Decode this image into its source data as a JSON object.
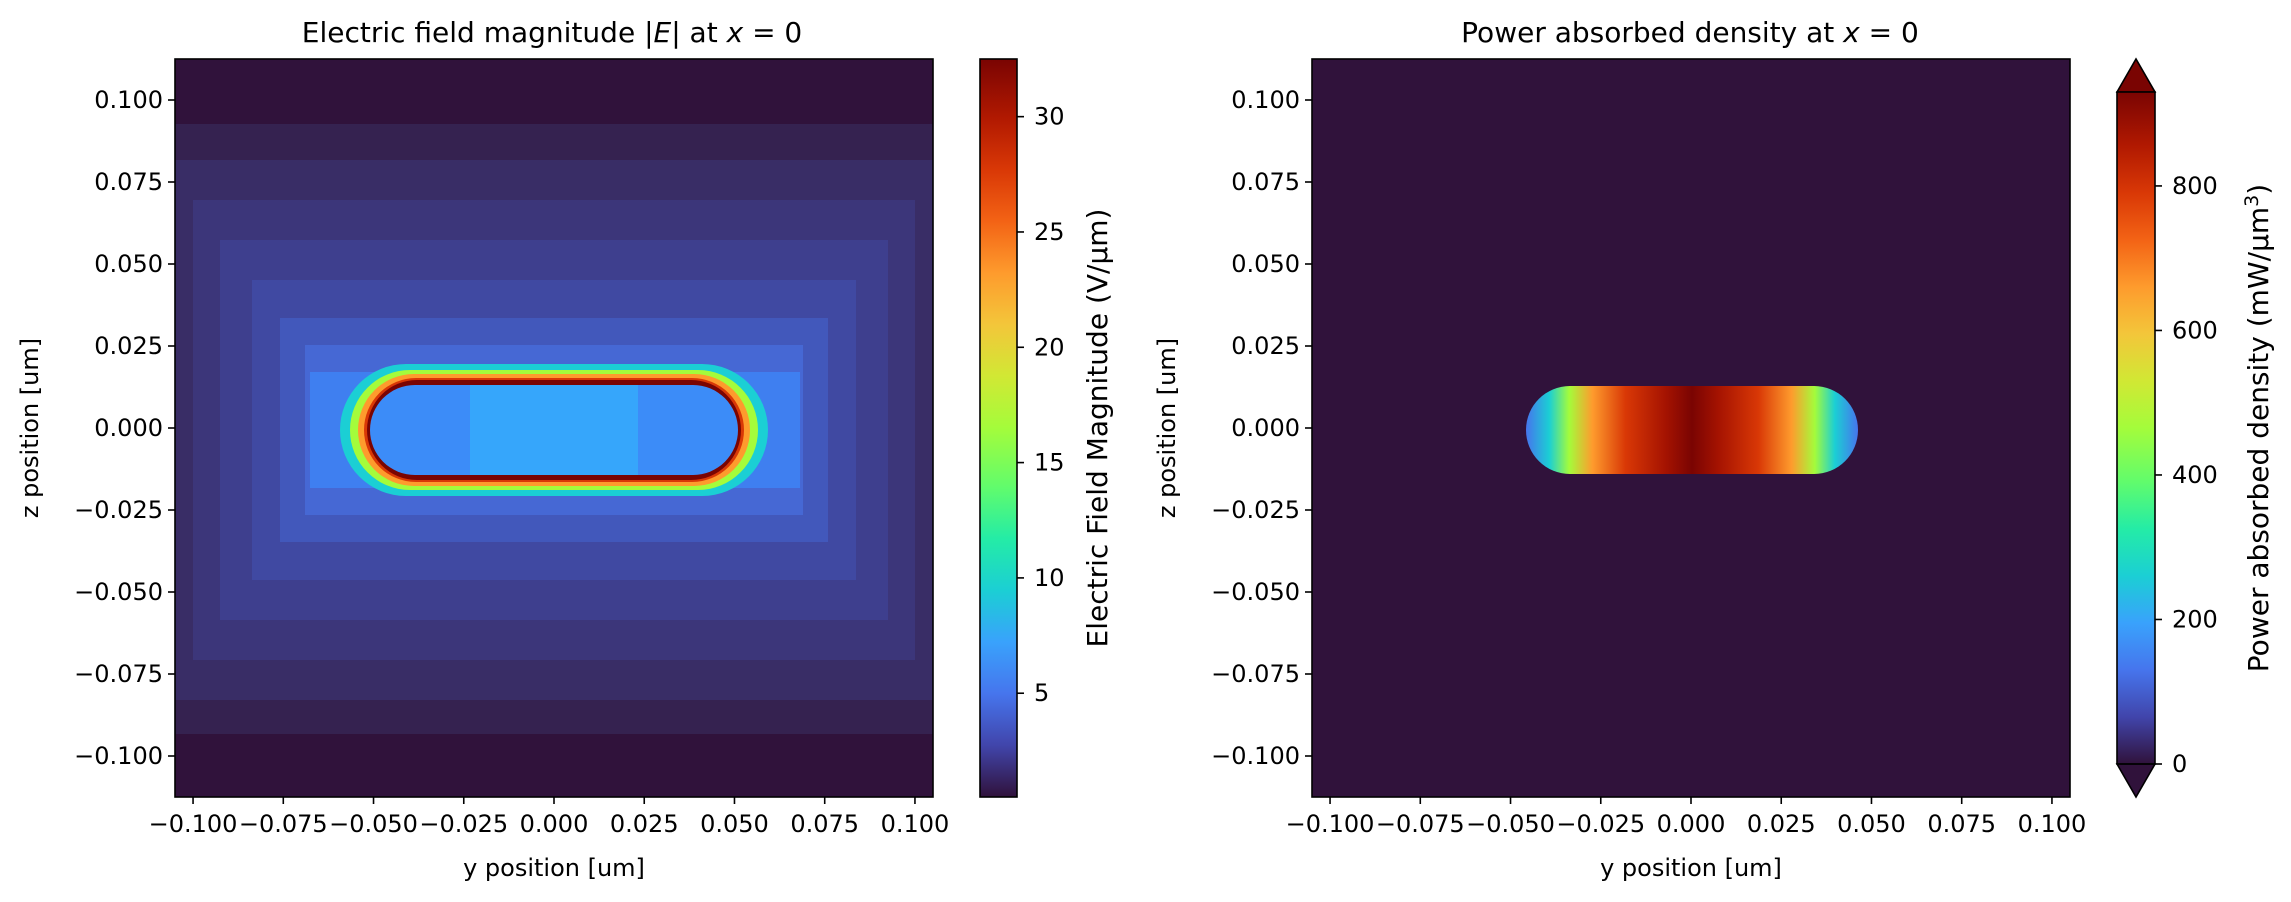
{
  "chart_data": [
    {
      "type": "heatmap",
      "title": "Electric field magnitude |E| at x = 0",
      "title_parts": {
        "prefix": "Electric field magnitude |",
        "E": "E",
        "mid": "| at ",
        "x": "x",
        "suffix": " = 0"
      },
      "xlabel": "y position [um]",
      "ylabel": "z position [um]",
      "xlim": [
        -0.105,
        0.105
      ],
      "ylim": [
        -0.1125,
        0.1125
      ],
      "xticks": [
        -0.1,
        -0.075,
        -0.05,
        -0.025,
        0.0,
        0.025,
        0.05,
        0.075,
        0.1
      ],
      "xtick_labels": [
        "−0.100",
        "−0.075",
        "−0.050",
        "−0.025",
        "0.000",
        "0.025",
        "0.050",
        "0.075",
        "0.100"
      ],
      "yticks": [
        0.1,
        0.075,
        0.05,
        0.025,
        0.0,
        -0.025,
        -0.05,
        -0.075,
        -0.1
      ],
      "ytick_labels": [
        "0.100",
        "0.075",
        "0.050",
        "0.025",
        "0.000",
        "−0.025",
        "−0.050",
        "−0.075",
        "−0.100"
      ],
      "colormap": "turbo",
      "colorbar": {
        "label": "Electric Field Magnitude (V/µm)",
        "range": [
          0.5,
          32.5
        ],
        "ticks": [
          5,
          10,
          15,
          20,
          25,
          30
        ],
        "tick_labels": [
          "5",
          "10",
          "15",
          "20",
          "25",
          "30"
        ],
        "extend": "neither"
      },
      "structure": {
        "shape": "capsule",
        "y_extent": [
          -0.0455,
          0.0455
        ],
        "z_extent": [
          -0.0125,
          0.0125
        ]
      },
      "field_values": {
        "background": 1,
        "near_structure": 4,
        "inside_center": 7,
        "inside_ends": 6,
        "tip_peak": 32.5
      }
    },
    {
      "type": "heatmap",
      "title": "Power absorbed density at x = 0",
      "title_parts": {
        "prefix": "Power absorbed density at ",
        "x": "x",
        "suffix": " = 0"
      },
      "xlabel": "y position [um]",
      "ylabel": "z position [um]",
      "xlim": [
        -0.105,
        0.105
      ],
      "ylim": [
        -0.1125,
        0.1125
      ],
      "xticks": [
        -0.1,
        -0.075,
        -0.05,
        -0.025,
        0.0,
        0.025,
        0.05,
        0.075,
        0.1
      ],
      "xtick_labels": [
        "−0.100",
        "−0.075",
        "−0.050",
        "−0.025",
        "0.000",
        "0.025",
        "0.050",
        "0.075",
        "0.100"
      ],
      "yticks": [
        0.1,
        0.075,
        0.05,
        0.025,
        0.0,
        -0.025,
        -0.05,
        -0.075,
        -0.1
      ],
      "ytick_labels": [
        "0.100",
        "0.075",
        "0.050",
        "0.025",
        "0.000",
        "−0.025",
        "−0.050",
        "−0.075",
        "−0.100"
      ],
      "colormap": "turbo",
      "colorbar": {
        "label_prefix": "Power absorbed density (mW/µm",
        "label_sup": "3",
        "label_suffix": ")",
        "range": [
          0,
          930
        ],
        "ticks": [
          0,
          200,
          400,
          600,
          800
        ],
        "tick_labels": [
          "0",
          "200",
          "400",
          "600",
          "800"
        ],
        "extend": "both"
      },
      "structure": {
        "shape": "capsule",
        "y_extent": [
          -0.0455,
          0.0455
        ],
        "z_extent": [
          -0.0125,
          0.0125
        ]
      },
      "field_values": {
        "background": 0,
        "edge": 180,
        "mid": 800,
        "center": 930
      }
    }
  ]
}
